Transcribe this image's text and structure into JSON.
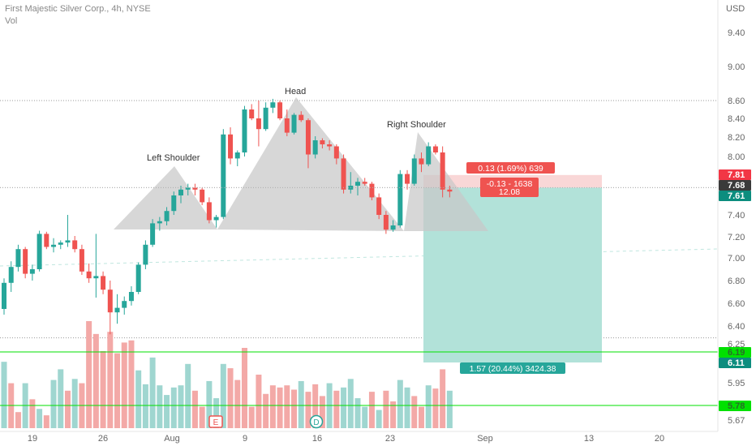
{
  "header": {
    "title": "First Majestic Silver Corp., 4h, NYSE",
    "vol_label": "Vol"
  },
  "colors": {
    "up": "#26a69a",
    "down": "#ef5350",
    "up_vol": "#9fd6d0",
    "down_vol": "#f3a9a7",
    "pattern": "#c8c8c8",
    "green_line": "#00e100",
    "target_zone": "#b2e2d9",
    "stop_zone": "#f9d7d7"
  },
  "chart_data": {
    "type": "candlestick",
    "title": "First Majestic Silver Corp., 4h, NYSE",
    "currency": "USD",
    "price_ticks": [
      9.4,
      9.0,
      8.6,
      8.4,
      8.2,
      8.0,
      7.4,
      7.2,
      7.0,
      6.8,
      6.6,
      6.4,
      6.25,
      5.95,
      5.67
    ],
    "x_ticks": [
      "19",
      "26",
      "Aug",
      "9",
      "16",
      "23",
      "Sep",
      "13",
      "20"
    ],
    "dotted_levels": [
      8.6,
      7.68,
      6.3
    ],
    "horizontal_lines": [
      6.19,
      5.78
    ],
    "price_labels": [
      {
        "text": "7.81",
        "style": "red"
      },
      {
        "text": "7.68",
        "style": "dark"
      },
      {
        "text": "7.61",
        "style": "teal"
      },
      {
        "text": "6.19",
        "style": "green"
      },
      {
        "text": "6.11",
        "style": "teal"
      },
      {
        "text": "5.78",
        "style": "green"
      }
    ],
    "pattern_labels": [
      "Left Shoulder",
      "Head",
      "Right Shoulder"
    ],
    "position": {
      "entry": 7.68,
      "stop": 7.81,
      "target": 6.11,
      "stop_label": "0.13 (1.69%) 639",
      "target_label": "1.57 (20.44%) 3424.38",
      "current_label_line1": "-0.13 - 1638",
      "current_label_line2": "12.08"
    },
    "event_markers": [
      "E",
      "D"
    ],
    "candles": [
      [
        6.55,
        6.82,
        6.5,
        6.78
      ],
      [
        6.78,
        6.97,
        6.7,
        6.92
      ],
      [
        6.92,
        7.12,
        6.88,
        7.08
      ],
      [
        7.08,
        7.1,
        6.82,
        6.86
      ],
      [
        6.86,
        6.94,
        6.8,
        6.9
      ],
      [
        6.9,
        7.25,
        6.88,
        7.22
      ],
      [
        7.22,
        7.24,
        7.08,
        7.1
      ],
      [
        7.1,
        7.18,
        7.05,
        7.12
      ],
      [
        7.12,
        7.16,
        7.08,
        7.14
      ],
      [
        7.14,
        7.4,
        7.1,
        7.16
      ],
      [
        7.16,
        7.2,
        7.05,
        7.08
      ],
      [
        7.08,
        7.12,
        6.85,
        6.88
      ],
      [
        6.88,
        6.95,
        6.78,
        6.82
      ],
      [
        6.82,
        7.22,
        6.65,
        6.84
      ],
      [
        6.84,
        6.88,
        6.68,
        6.72
      ],
      [
        6.72,
        6.8,
        6.33,
        6.52
      ],
      [
        6.52,
        6.68,
        6.42,
        6.56
      ],
      [
        6.56,
        6.66,
        6.5,
        6.62
      ],
      [
        6.62,
        6.75,
        6.58,
        6.7
      ],
      [
        6.7,
        6.96,
        6.68,
        6.94
      ],
      [
        6.94,
        7.16,
        6.9,
        7.12
      ],
      [
        7.12,
        7.36,
        7.1,
        7.32
      ],
      [
        7.32,
        7.38,
        7.25,
        7.34
      ],
      [
        7.34,
        7.48,
        7.3,
        7.44
      ],
      [
        7.44,
        7.64,
        7.4,
        7.6
      ],
      [
        7.6,
        7.7,
        7.52,
        7.66
      ],
      [
        7.66,
        7.72,
        7.6,
        7.68
      ],
      [
        7.68,
        7.72,
        7.6,
        7.66
      ],
      [
        7.66,
        7.68,
        7.5,
        7.53
      ],
      [
        7.53,
        7.58,
        7.32,
        7.35
      ],
      [
        7.35,
        7.4,
        7.28,
        7.38
      ],
      [
        7.38,
        8.28,
        7.36,
        8.22
      ],
      [
        8.22,
        8.3,
        7.92,
        7.98
      ],
      [
        7.98,
        8.06,
        7.9,
        8.04
      ],
      [
        8.04,
        8.54,
        8.0,
        8.5
      ],
      [
        8.5,
        8.56,
        8.38,
        8.4
      ],
      [
        8.4,
        8.6,
        8.1,
        8.28
      ],
      [
        8.28,
        8.58,
        8.26,
        8.52
      ],
      [
        8.52,
        8.62,
        8.46,
        8.58
      ],
      [
        8.58,
        8.6,
        8.38,
        8.4
      ],
      [
        8.4,
        8.5,
        8.2,
        8.24
      ],
      [
        8.24,
        8.46,
        8.22,
        8.44
      ],
      [
        8.44,
        8.48,
        8.36,
        8.38
      ],
      [
        8.38,
        8.4,
        7.88,
        8.02
      ],
      [
        8.02,
        8.2,
        7.98,
        8.16
      ],
      [
        8.16,
        8.18,
        8.08,
        8.12
      ],
      [
        8.12,
        8.16,
        8.06,
        8.1
      ],
      [
        8.1,
        8.12,
        7.92,
        7.98
      ],
      [
        7.98,
        8.02,
        7.62,
        7.66
      ],
      [
        7.66,
        7.84,
        7.62,
        7.7
      ],
      [
        7.7,
        7.78,
        7.6,
        7.74
      ],
      [
        7.74,
        7.78,
        7.7,
        7.72
      ],
      [
        7.72,
        7.74,
        7.55,
        7.58
      ],
      [
        7.58,
        7.62,
        7.36,
        7.4
      ],
      [
        7.4,
        7.44,
        7.22,
        7.26
      ],
      [
        7.26,
        7.35,
        7.24,
        7.3
      ],
      [
        7.3,
        7.86,
        7.28,
        7.82
      ],
      [
        7.82,
        7.86,
        7.66,
        7.72
      ],
      [
        7.72,
        8.02,
        7.7,
        7.98
      ],
      [
        7.98,
        8.04,
        7.84,
        7.92
      ],
      [
        7.92,
        8.14,
        7.9,
        8.1
      ],
      [
        8.1,
        8.12,
        8.02,
        8.04
      ],
      [
        8.04,
        8.1,
        7.58,
        7.66
      ],
      [
        7.66,
        7.7,
        7.58,
        7.64
      ]
    ],
    "volumes": [
      [
        0.62,
        0
      ],
      [
        0.42,
        1
      ],
      [
        0.15,
        1
      ],
      [
        0.42,
        0
      ],
      [
        0.27,
        1
      ],
      [
        0.18,
        0
      ],
      [
        0.12,
        1
      ],
      [
        0.45,
        0
      ],
      [
        0.55,
        0
      ],
      [
        0.35,
        1
      ],
      [
        0.46,
        0
      ],
      [
        0.42,
        1
      ],
      [
        1.0,
        1
      ],
      [
        0.88,
        1
      ],
      [
        0.72,
        1
      ],
      [
        0.9,
        1
      ],
      [
        0.7,
        1
      ],
      [
        0.8,
        1
      ],
      [
        0.82,
        1
      ],
      [
        0.54,
        0
      ],
      [
        0.41,
        0
      ],
      [
        0.66,
        0
      ],
      [
        0.4,
        0
      ],
      [
        0.31,
        0
      ],
      [
        0.38,
        0
      ],
      [
        0.4,
        0
      ],
      [
        0.6,
        0
      ],
      [
        0.35,
        1
      ],
      [
        0.2,
        1
      ],
      [
        0.44,
        0
      ],
      [
        0.28,
        0
      ],
      [
        0.6,
        0
      ],
      [
        0.56,
        1
      ],
      [
        0.45,
        1
      ],
      [
        0.75,
        1
      ],
      [
        0.2,
        1
      ],
      [
        0.5,
        1
      ],
      [
        0.32,
        1
      ],
      [
        0.4,
        1
      ],
      [
        0.38,
        1
      ],
      [
        0.4,
        1
      ],
      [
        0.36,
        1
      ],
      [
        0.44,
        0
      ],
      [
        0.34,
        1
      ],
      [
        0.41,
        1
      ],
      [
        0.3,
        1
      ],
      [
        0.42,
        0
      ],
      [
        0.35,
        1
      ],
      [
        0.38,
        0
      ],
      [
        0.46,
        0
      ],
      [
        0.28,
        0
      ],
      [
        0.2,
        0
      ],
      [
        0.34,
        1
      ],
      [
        0.17,
        0
      ],
      [
        0.35,
        1
      ],
      [
        0.25,
        1
      ],
      [
        0.45,
        0
      ],
      [
        0.38,
        0
      ],
      [
        0.3,
        1
      ],
      [
        0.2,
        1
      ],
      [
        0.4,
        0
      ],
      [
        0.37,
        1
      ],
      [
        0.55,
        1
      ],
      [
        0.35,
        0
      ]
    ]
  }
}
